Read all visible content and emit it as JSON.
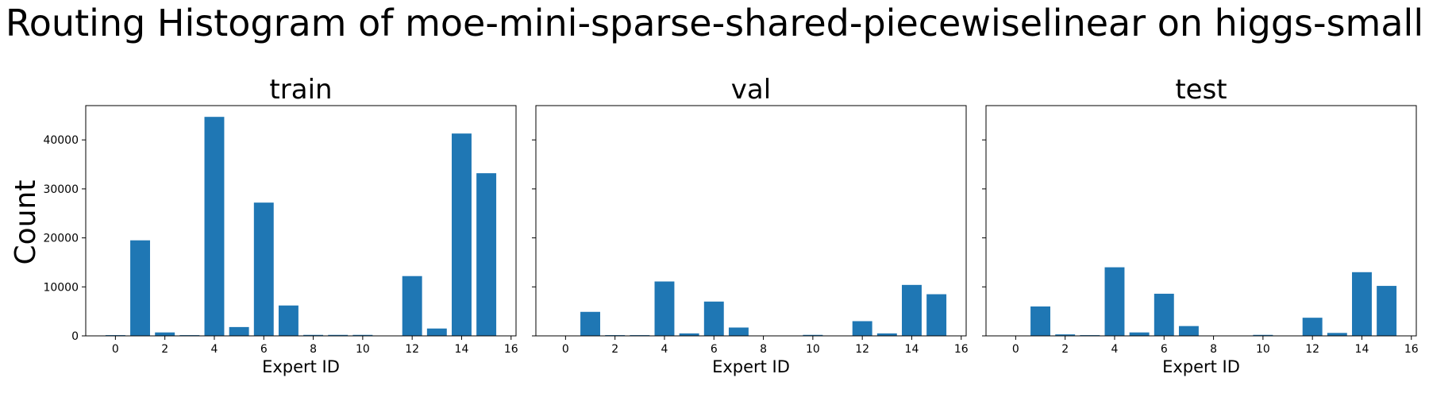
{
  "chart_data": {
    "type": "bar",
    "title": "Routing Histogram of moe-mini-sparse-shared-piecewiselinear on higgs-small",
    "ylabel": "Count",
    "sharey": true,
    "ylim": [
      0,
      47000
    ],
    "yticks": [
      0,
      10000,
      20000,
      30000,
      40000
    ],
    "xlim": [
      -1.2,
      16.2
    ],
    "xticks": [
      0,
      2,
      4,
      6,
      8,
      10,
      12,
      14,
      16
    ],
    "bar_color": "#1f77b4",
    "subplots": [
      {
        "title": "train",
        "xlabel": "Expert ID",
        "categories": [
          0,
          1,
          2,
          3,
          4,
          5,
          6,
          7,
          8,
          9,
          10,
          11,
          12,
          13,
          14,
          15
        ],
        "values": [
          150,
          19500,
          700,
          150,
          44700,
          1800,
          27200,
          6200,
          200,
          200,
          200,
          0,
          12200,
          1500,
          41300,
          33200
        ]
      },
      {
        "title": "val",
        "xlabel": "Expert ID",
        "categories": [
          0,
          1,
          2,
          3,
          4,
          5,
          6,
          7,
          8,
          9,
          10,
          11,
          12,
          13,
          14,
          15
        ],
        "values": [
          0,
          4900,
          150,
          150,
          11100,
          500,
          7000,
          1700,
          0,
          0,
          200,
          0,
          3000,
          500,
          10400,
          8500
        ]
      },
      {
        "title": "test",
        "xlabel": "Expert ID",
        "categories": [
          0,
          1,
          2,
          3,
          4,
          5,
          6,
          7,
          8,
          9,
          10,
          11,
          12,
          13,
          14,
          15
        ],
        "values": [
          0,
          6000,
          300,
          150,
          14000,
          700,
          8600,
          2000,
          0,
          0,
          200,
          0,
          3700,
          600,
          13000,
          10200
        ]
      }
    ]
  }
}
